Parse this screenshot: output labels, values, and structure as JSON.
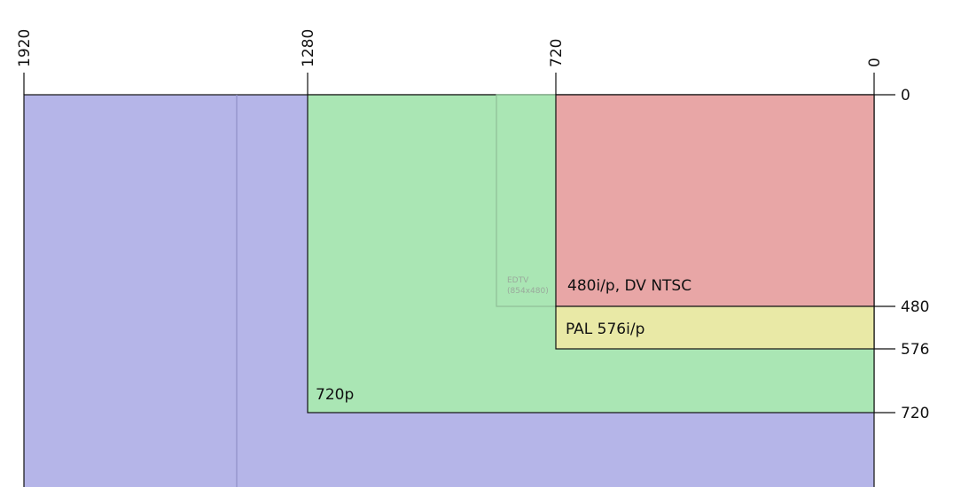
{
  "top_labels": [
    "1920",
    "1280",
    "720",
    "0"
  ],
  "right_labels": [
    "0",
    "480",
    "576",
    "720"
  ],
  "regions": {
    "ntsc": "480i/p, DV NTSC",
    "pal": "PAL 576i/p",
    "hd720": "720p",
    "edtv": [
      "EDTV",
      "(854x480)"
    ]
  }
}
